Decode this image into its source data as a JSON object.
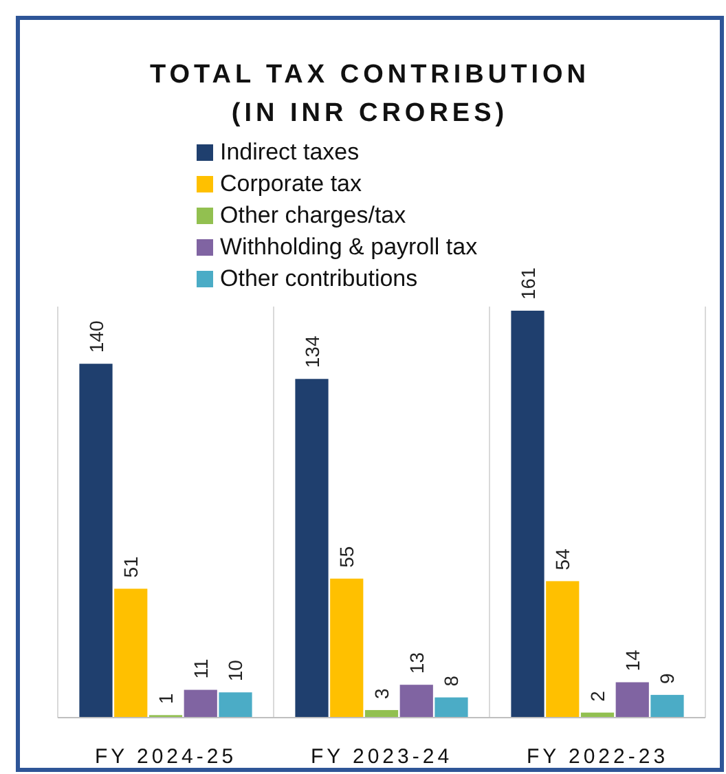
{
  "chart_data": {
    "type": "bar",
    "title": "TOTAL TAX CONTRIBUTION\n(IN INR CRORES)",
    "categories": [
      "FY 2024-25",
      "FY 2023-24",
      "FY 2022-23"
    ],
    "series": [
      {
        "name": "Indirect taxes",
        "color": "#1f3f6e",
        "values": [
          140,
          134,
          161
        ]
      },
      {
        "name": "Corporate tax",
        "color": "#ffc000",
        "values": [
          51,
          55,
          54
        ]
      },
      {
        "name": "Other charges/tax",
        "color": "#92c050",
        "values": [
          1,
          3,
          2
        ]
      },
      {
        "name": "Withholding & payroll tax",
        "color": "#8064a2",
        "values": [
          11,
          13,
          14
        ]
      },
      {
        "name": "Other contributions",
        "color": "#4bacc6",
        "values": [
          10,
          8,
          9
        ]
      }
    ],
    "data_labels": true,
    "legend": "top",
    "grid": false
  }
}
